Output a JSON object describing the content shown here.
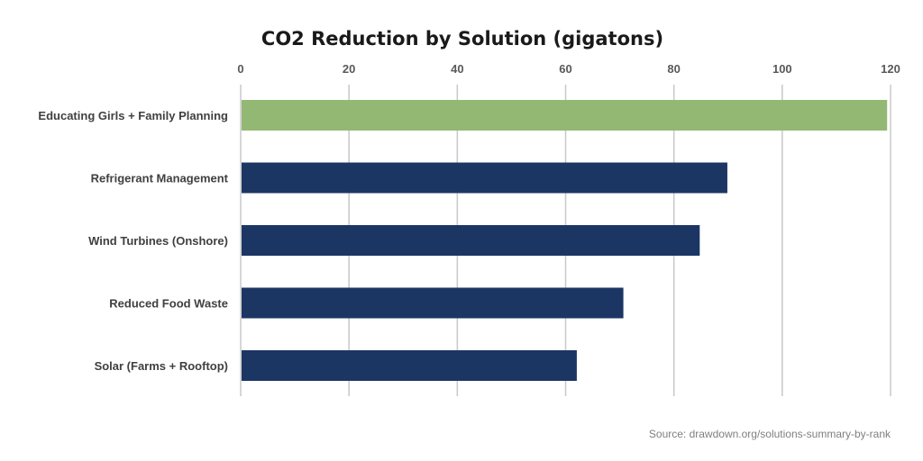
{
  "chart_data": {
    "type": "bar",
    "orientation": "horizontal",
    "title": "CO2 Reduction by Solution (gigatons)",
    "categories": [
      "Educating Girls + Family Planning",
      "Refrigerant Management",
      "Wind Turbines (Onshore)",
      "Reduced Food Waste",
      "Solar (Farms + Rooftop)"
    ],
    "values": [
      119.2,
      89.7,
      84.6,
      70.5,
      61.9
    ],
    "colors": [
      "#93b874",
      "#1c3664",
      "#1c3664",
      "#1c3664",
      "#1c3664"
    ],
    "xlim": [
      0,
      120
    ],
    "xticks": [
      0,
      20,
      40,
      60,
      80,
      100,
      120
    ],
    "xaxis_position": "top",
    "grid": true,
    "gridline_color": "#c8c8c8",
    "source": "Source: drawdown.org/solutions-summary-by-rank"
  }
}
